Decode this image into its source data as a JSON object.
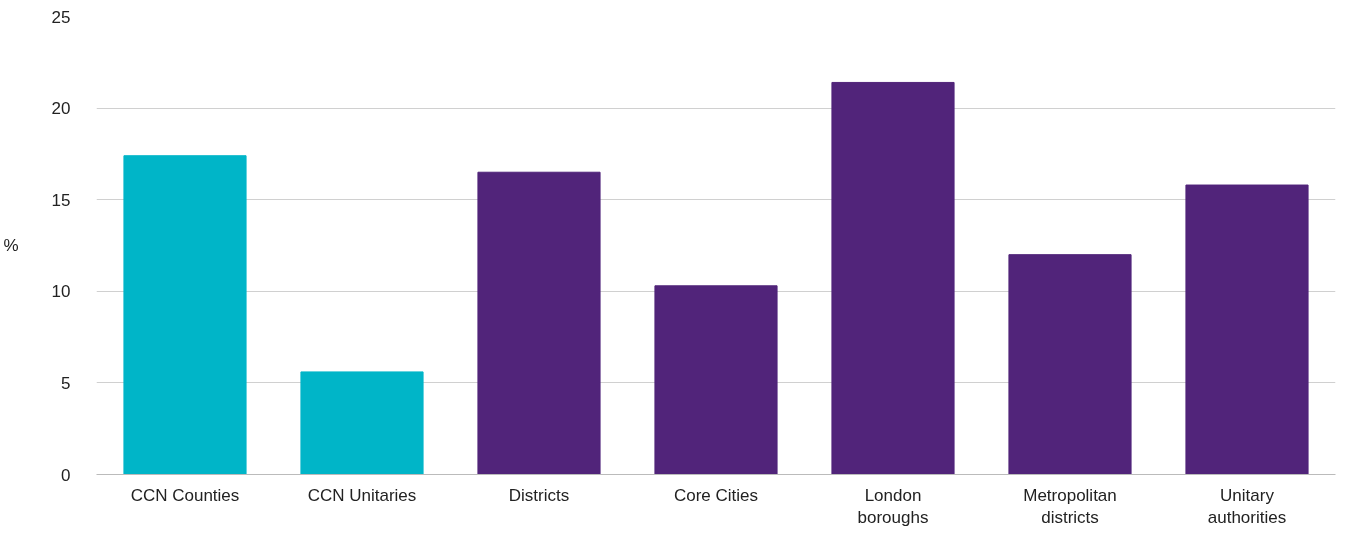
{
  "chart_data": {
    "type": "bar",
    "ylabel": "%",
    "categories": [
      "CCN Counties",
      "CCN Unitaries",
      "Districts",
      "Core Cities",
      "London boroughs",
      "Metropolitan districts",
      "Unitary authorities"
    ],
    "values": [
      17.4,
      5.6,
      16.5,
      10.3,
      21.4,
      12.0,
      15.8
    ],
    "colors": [
      "#00b5c8",
      "#00b5c8",
      "#51247a",
      "#51247a",
      "#51247a",
      "#51247a",
      "#51247a"
    ],
    "ylim": [
      0,
      25
    ],
    "yticks": [
      0,
      5,
      10,
      15,
      20,
      25
    ],
    "grid": "y"
  }
}
